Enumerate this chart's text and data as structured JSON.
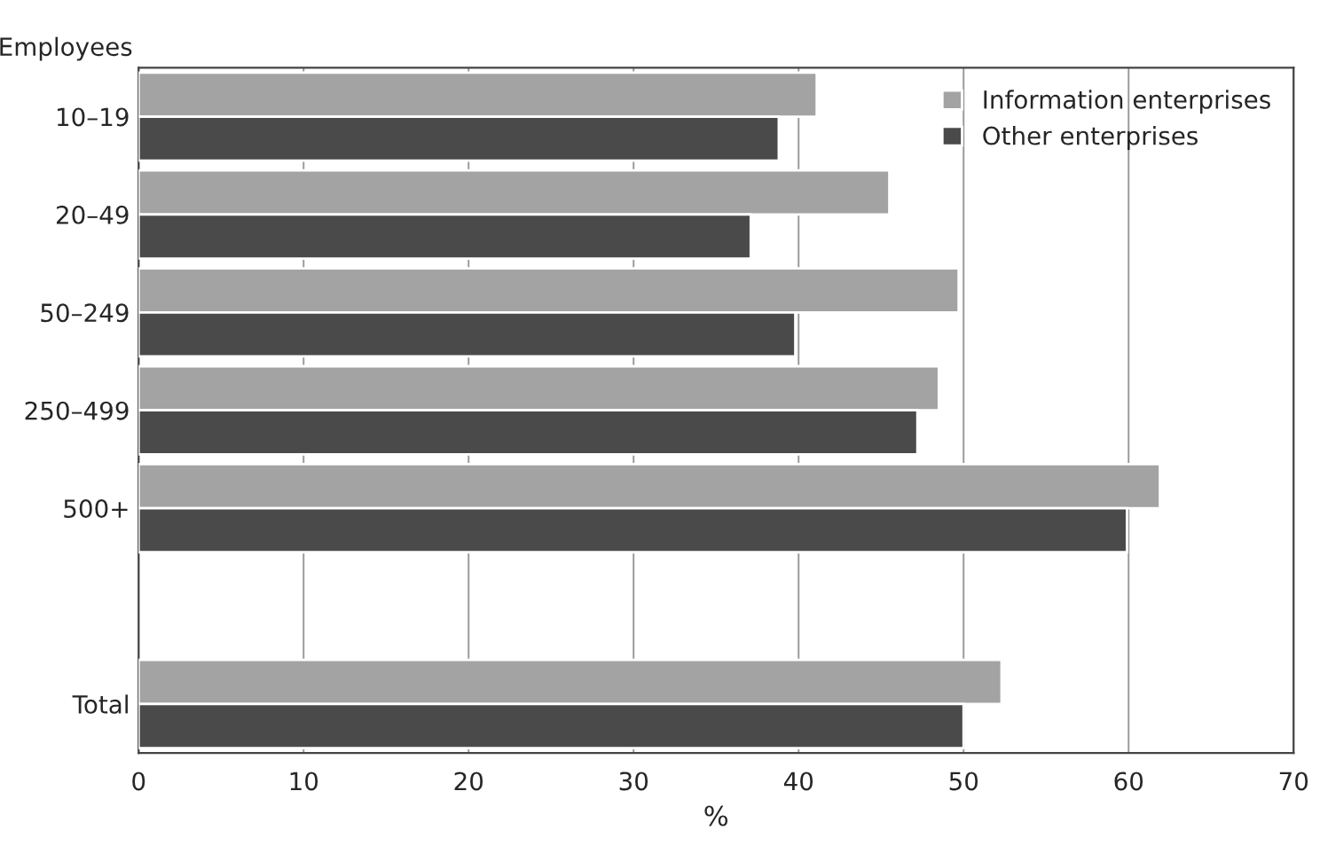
{
  "chart_data": {
    "type": "bar",
    "orientation": "horizontal",
    "xlabel": "%",
    "ylabel": "Employees",
    "categories": [
      "10–19",
      "20–49",
      "50–249",
      "250–499",
      "500+",
      null,
      "Total"
    ],
    "series": [
      {
        "name": "Information enterprises",
        "color": "#a3a3a3",
        "values": [
          41.1,
          45.5,
          49.7,
          48.5,
          61.9,
          null,
          52.3
        ]
      },
      {
        "name": "Other enterprises",
        "color": "#4a4a4a",
        "values": [
          38.8,
          37.1,
          39.8,
          47.2,
          59.9,
          null,
          50.0
        ]
      }
    ],
    "xlim": [
      0,
      70
    ],
    "xticks": [
      0,
      10,
      20,
      30,
      40,
      50,
      60,
      70
    ],
    "grid": "x",
    "legend": "top right"
  }
}
